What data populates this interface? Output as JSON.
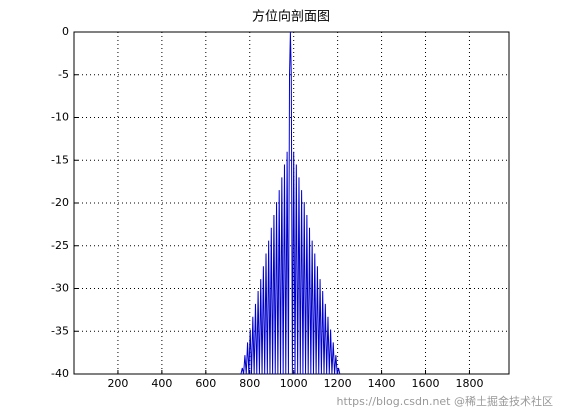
{
  "chart_data": {
    "type": "line",
    "title": "方位向剖面图",
    "x": [
      760,
      766,
      772,
      778,
      784,
      790,
      796,
      802,
      808,
      814,
      820,
      826,
      832,
      838,
      844,
      850,
      856,
      862,
      868,
      874,
      880,
      886,
      892,
      898,
      904,
      910,
      916,
      922,
      928,
      934,
      940,
      946,
      952,
      958,
      964,
      970,
      976,
      981,
      985,
      989,
      994,
      1000,
      1006,
      1012,
      1018,
      1024,
      1030,
      1036,
      1042,
      1048,
      1054,
      1060,
      1066,
      1072,
      1078,
      1084,
      1090,
      1096,
      1102,
      1108,
      1114,
      1120,
      1126,
      1132,
      1138,
      1144,
      1150,
      1156,
      1162,
      1168,
      1174,
      1180,
      1186,
      1192,
      1198,
      1204,
      1210
    ],
    "series": [
      {
        "color": "#0000cc",
        "values": [
          -40,
          -39.3,
          -40,
          -37.8,
          -40,
          -36.3,
          -40,
          -34.8,
          -40,
          -33.3,
          -40,
          -31.8,
          -40,
          -30.3,
          -40,
          -28.9,
          -40,
          -27.4,
          -40,
          -25.9,
          -40,
          -24.4,
          -40,
          -22.9,
          -40,
          -21.4,
          -40,
          -19.9,
          -40,
          -18.5,
          -40,
          -17,
          -40,
          -15.5,
          -40,
          -14,
          -40,
          -5,
          0,
          -5,
          -40,
          -14,
          -40,
          -15.5,
          -40,
          -17,
          -40,
          -18.5,
          -40,
          -19.9,
          -40,
          -21.4,
          -40,
          -22.9,
          -40,
          -24.4,
          -40,
          -25.9,
          -40,
          -27.4,
          -40,
          -28.9,
          -40,
          -30.3,
          -40,
          -31.8,
          -40,
          -33.3,
          -40,
          -34.8,
          -40,
          -36.3,
          -40,
          -37.8,
          -40,
          -39.3,
          -40
        ]
      }
    ],
    "xlim": [
      0,
      1980
    ],
    "xticks": [
      200,
      400,
      600,
      800,
      1000,
      1200,
      1400,
      1600,
      1800
    ],
    "ylim": [
      -40,
      0
    ],
    "yticks": [
      0,
      -5,
      -10,
      -15,
      -20,
      -25,
      -30,
      -35,
      -40
    ],
    "grid": true,
    "watermark": "https://blog.csdn.net @稀土掘金技术社区"
  }
}
